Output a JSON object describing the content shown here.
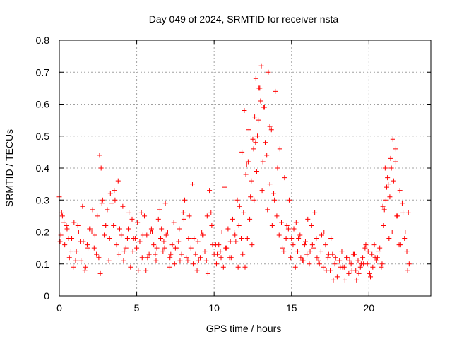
{
  "chart_data": {
    "type": "scatter",
    "title": "Day 049 of 2024, SRMTID for receiver nsta",
    "xlabel": "GPS time / hours",
    "ylabel": "SRMTID / TECUs",
    "xlim": [
      0,
      24
    ],
    "ylim": [
      0,
      0.8
    ],
    "x_ticks": [
      0,
      5,
      10,
      15,
      20
    ],
    "y_ticks": [
      0,
      0.1,
      0.2,
      0.3,
      0.4,
      0.5,
      0.6,
      0.7,
      0.8
    ],
    "x_tick_labels": [
      "0",
      "5",
      "10",
      "15",
      "20"
    ],
    "y_tick_labels": [
      "0",
      "0.1",
      "0.2",
      "0.3",
      "0.4",
      "0.5",
      "0.6",
      "0.7",
      "0.8"
    ],
    "grid": true,
    "marker": "+",
    "marker_color": "#ff0000",
    "grid_color": "#a0a0a0",
    "series": [
      {
        "name": "SRMTID",
        "x": [
          0.0,
          0.1,
          0.2,
          0.35,
          0.5,
          0.65,
          0.8,
          0.95,
          1.1,
          1.25,
          1.4,
          1.55,
          1.7,
          1.85,
          2.0,
          2.15,
          2.3,
          2.45,
          2.6,
          2.7,
          2.8,
          2.95,
          3.1,
          3.25,
          3.4,
          3.55,
          3.7,
          3.85,
          4.0,
          4.15,
          4.3,
          4.45,
          4.6,
          4.75,
          4.9,
          5.05,
          5.2,
          5.35,
          5.5,
          5.65,
          5.8,
          5.95,
          6.1,
          6.25,
          6.4,
          6.55,
          6.7,
          6.85,
          7.0,
          7.15,
          7.3,
          7.45,
          7.6,
          7.75,
          7.9,
          8.05,
          8.2,
          8.35,
          8.5,
          8.65,
          8.8,
          8.95,
          9.1,
          9.25,
          9.4,
          9.55,
          9.7,
          9.85,
          10.0,
          10.15,
          10.3,
          10.45,
          10.6,
          10.75,
          10.9,
          11.05,
          11.2,
          11.35,
          11.5,
          11.65,
          11.8,
          11.95,
          12.1,
          12.25,
          12.4,
          12.55,
          12.7,
          12.85,
          13.0,
          13.15,
          13.3,
          13.45,
          13.6,
          13.75,
          13.9,
          14.05,
          14.2,
          14.35,
          14.5,
          14.65,
          14.8,
          14.95,
          15.1,
          15.25,
          15.4,
          15.55,
          15.7,
          15.85,
          16.0,
          16.15,
          16.3,
          16.45,
          16.6,
          16.75,
          16.9,
          17.05,
          17.2,
          17.35,
          17.5,
          17.65,
          17.8,
          17.95,
          18.1,
          18.25,
          18.4,
          18.55,
          18.7,
          18.85,
          19.0,
          19.15,
          19.3,
          19.45,
          19.6,
          19.75,
          19.9,
          20.05,
          20.2,
          20.35,
          20.5,
          20.65,
          20.8,
          20.95,
          21.1,
          21.25,
          21.4,
          21.55,
          21.7,
          21.85,
          22.0,
          22.15,
          22.3,
          22.45,
          22.6,
          0.05,
          0.3,
          0.6,
          0.9,
          1.2,
          1.5,
          1.8,
          2.1,
          2.4,
          2.65,
          2.9,
          3.2,
          3.5,
          3.8,
          4.1,
          4.4,
          4.7,
          5.0,
          5.3,
          5.6,
          5.9,
          6.2,
          6.5,
          6.8,
          7.1,
          7.4,
          7.7,
          8.0,
          8.3,
          8.6,
          8.9,
          9.2,
          9.5,
          9.8,
          10.1,
          10.4,
          10.7,
          11.0,
          11.3,
          11.55,
          11.75,
          11.9,
          12.05,
          12.2,
          12.35,
          12.5,
          12.62,
          12.75,
          12.9,
          13.05,
          13.2,
          13.4,
          13.6,
          13.85,
          14.1,
          14.4,
          14.7,
          15.0,
          15.3,
          15.6,
          15.9,
          16.2,
          16.5,
          16.8,
          17.1,
          17.4,
          17.7,
          18.0,
          18.3,
          18.6,
          18.9,
          19.2,
          19.5,
          19.8,
          20.1,
          20.4,
          20.7,
          20.9,
          21.05,
          21.2,
          21.35,
          21.5,
          21.7,
          21.95,
          22.2,
          22.5,
          0.15,
          0.45,
          0.75,
          1.05,
          1.35,
          1.65,
          1.95,
          2.25,
          2.55,
          2.75,
          3.0,
          3.3,
          3.6,
          3.9,
          4.2,
          4.5,
          4.8,
          5.1,
          5.4,
          5.7,
          6.0,
          6.3,
          6.6,
          6.75,
          6.9,
          7.2,
          7.5,
          7.8,
          8.1,
          8.4,
          8.7,
          9.0,
          9.3,
          9.6,
          9.9,
          10.2,
          10.5,
          10.8,
          11.1,
          11.4,
          11.6,
          11.85,
          12.0,
          12.15,
          12.3,
          12.45,
          12.58,
          12.68,
          12.8,
          12.95,
          13.1,
          13.25,
          13.5,
          13.7,
          13.95,
          14.25,
          14.55,
          14.85,
          15.15,
          15.45,
          15.75,
          16.05,
          16.35,
          16.65,
          16.95,
          17.25,
          17.55,
          17.85,
          18.15,
          18.45,
          18.75,
          19.05,
          19.35,
          19.65,
          19.95,
          20.25,
          20.55,
          20.85,
          21.0,
          21.15,
          21.3,
          21.45,
          21.6,
          21.8,
          22.05,
          22.35,
          22.55
        ],
        "y": [
          0.31,
          0.19,
          0.25,
          0.16,
          0.21,
          0.12,
          0.18,
          0.23,
          0.14,
          0.2,
          0.11,
          0.17,
          0.09,
          0.15,
          0.21,
          0.27,
          0.19,
          0.25,
          0.44,
          0.4,
          0.3,
          0.22,
          0.27,
          0.18,
          0.29,
          0.33,
          0.16,
          0.13,
          0.19,
          0.11,
          0.15,
          0.21,
          0.09,
          0.14,
          0.18,
          0.23,
          0.17,
          0.12,
          0.25,
          0.19,
          0.13,
          0.21,
          0.16,
          0.11,
          0.24,
          0.18,
          0.14,
          0.29,
          0.2,
          0.12,
          0.16,
          0.1,
          0.15,
          0.21,
          0.13,
          0.24,
          0.12,
          0.18,
          0.15,
          0.1,
          0.13,
          0.17,
          0.12,
          0.19,
          0.14,
          0.25,
          0.33,
          0.22,
          0.13,
          0.1,
          0.16,
          0.12,
          0.09,
          0.15,
          0.21,
          0.17,
          0.24,
          0.19,
          0.3,
          0.28,
          0.45,
          0.58,
          0.41,
          0.52,
          0.36,
          0.46,
          0.68,
          0.55,
          0.61,
          0.42,
          0.48,
          0.27,
          0.35,
          0.22,
          0.3,
          0.25,
          0.19,
          0.23,
          0.14,
          0.18,
          0.21,
          0.12,
          0.16,
          0.09,
          0.14,
          0.19,
          0.11,
          0.16,
          0.13,
          0.1,
          0.22,
          0.15,
          0.18,
          0.11,
          0.14,
          0.09,
          0.16,
          0.12,
          0.08,
          0.13,
          0.1,
          0.06,
          0.11,
          0.14,
          0.09,
          0.12,
          0.07,
          0.1,
          0.13,
          0.08,
          0.11,
          0.09,
          0.12,
          0.15,
          0.1,
          0.07,
          0.13,
          0.16,
          0.11,
          0.14,
          0.09,
          0.22,
          0.3,
          0.35,
          0.43,
          0.49,
          0.42,
          0.25,
          0.33,
          0.29,
          0.18,
          0.14,
          0.1,
          0.17,
          0.23,
          0.18,
          0.09,
          0.22,
          0.28,
          0.16,
          0.2,
          0.13,
          0.07,
          0.19,
          0.11,
          0.22,
          0.36,
          0.28,
          0.18,
          0.24,
          0.15,
          0.26,
          0.08,
          0.2,
          0.13,
          0.27,
          0.15,
          0.09,
          0.23,
          0.17,
          0.26,
          0.11,
          0.35,
          0.08,
          0.2,
          0.11,
          0.26,
          0.16,
          0.14,
          0.34,
          0.12,
          0.2,
          0.09,
          0.18,
          0.26,
          0.38,
          0.42,
          0.31,
          0.49,
          0.56,
          0.39,
          0.65,
          0.72,
          0.59,
          0.44,
          0.53,
          0.32,
          0.4,
          0.15,
          0.22,
          0.18,
          0.23,
          0.12,
          0.17,
          0.14,
          0.26,
          0.1,
          0.2,
          0.13,
          0.05,
          0.11,
          0.09,
          0.12,
          0.08,
          0.05,
          0.1,
          0.16,
          0.06,
          0.12,
          0.15,
          0.28,
          0.4,
          0.37,
          0.31,
          0.2,
          0.46,
          0.16,
          0.26,
          0.08,
          0.26,
          0.22,
          0.14,
          0.11,
          0.17,
          0.08,
          0.21,
          0.15,
          0.12,
          0.29,
          0.22,
          0.32,
          0.3,
          0.21,
          0.14,
          0.26,
          0.18,
          0.08,
          0.19,
          0.12,
          0.2,
          0.15,
          0.21,
          0.17,
          0.19,
          0.13,
          0.15,
          0.11,
          0.3,
          0.25,
          0.18,
          0.11,
          0.19,
          0.07,
          0.16,
          0.13,
          0.2,
          0.15,
          0.12,
          0.17,
          0.22,
          0.13,
          0.09,
          0.18,
          0.24,
          0.16,
          0.3,
          0.48,
          0.5,
          0.65,
          0.33,
          0.59,
          0.7,
          0.52,
          0.64,
          0.46,
          0.37,
          0.3,
          0.21,
          0.18,
          0.11,
          0.24,
          0.16,
          0.12,
          0.19,
          0.08,
          0.18,
          0.12,
          0.09,
          0.05,
          0.11,
          0.13,
          0.07,
          0.1,
          0.14,
          0.09,
          0.12,
          0.1,
          0.27,
          0.34,
          0.18,
          0.4,
          0.36,
          0.25,
          0.16,
          0.2,
          0.26
        ]
      }
    ]
  }
}
